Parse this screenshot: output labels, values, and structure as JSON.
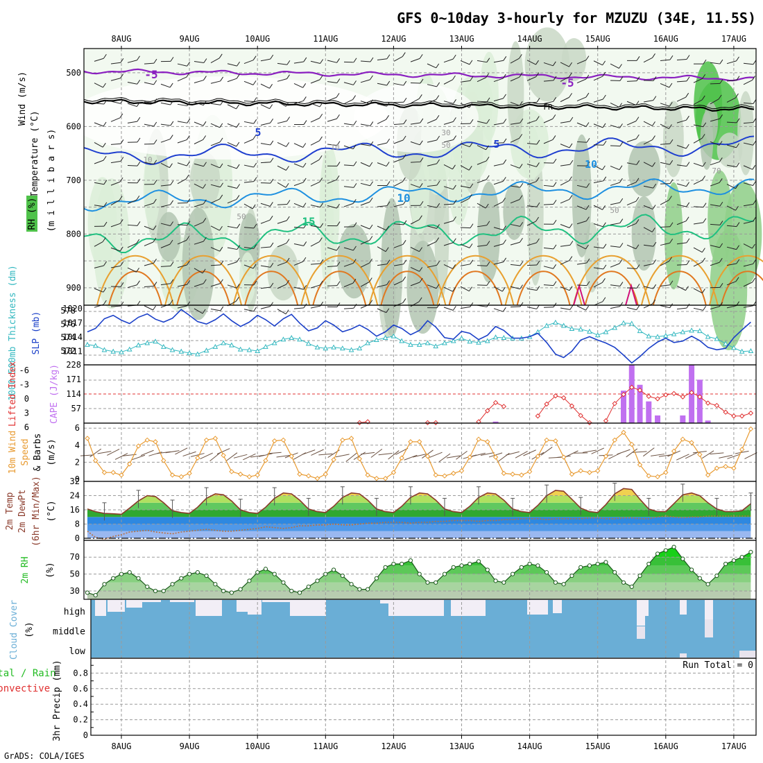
{
  "title": "GFS 0~10day 3-hourly for MZUZU (34E, 11.5S)",
  "footer": "GrADS: COLA/IGES",
  "dates": [
    "8AUG",
    "9AUG",
    "10AUG",
    "11AUG",
    "12AUG",
    "13AUG",
    "14AUG",
    "15AUG",
    "16AUG",
    "17AUG"
  ],
  "colors": {
    "slp": "#1a3fc8",
    "thickness": "#33b8c0",
    "lifted": "#e03030",
    "cape": "#c070f0",
    "wind10": "#e89a30",
    "temp2m": "#8a3a2a",
    "rh2m": "#22bb22",
    "cloud": "#6aaed6",
    "precip_total": "#22bb22",
    "precip_conv": "#e03030"
  },
  "panels": {
    "upper": {
      "label_wind": "Wind (m/s)",
      "label_temp": "Temperature (°C)",
      "label_rh": "RH (%)",
      "label_mb": "(m i l l i b a r s)",
      "yticks": [
        "500",
        "600",
        "700",
        "800",
        "900"
      ],
      "contour_labels": [
        "-5",
        "-5",
        "FR",
        "5",
        "5",
        "10",
        "10",
        "15",
        "30",
        "50",
        "50",
        "50",
        "10",
        "10",
        "70"
      ]
    },
    "slp": {
      "label_thick": "1000-500mb Thickness (dm)",
      "label_slp": "SLP (mb)",
      "yticks_thick": [
        "578",
        "576",
        "574",
        "572"
      ],
      "yticks_slp": [
        "1020",
        "1017",
        "1014",
        "1011"
      ]
    },
    "cape": {
      "label_li": "Lifted Index",
      "label_cape": "CAPE (J/kg)",
      "yticks_li": [
        "-6",
        "-3",
        "0",
        "3",
        "6"
      ],
      "yticks_cape": [
        "228",
        "171",
        "114",
        "57"
      ]
    },
    "wind10": {
      "label_1": "10m Wind",
      "label_2": "Speed",
      "label_3": "& Barbs",
      "label_unit": "(m/s)",
      "yticks": [
        "6",
        "4",
        "2",
        "0"
      ]
    },
    "temp2m": {
      "label_1": "2m Temp",
      "label_2": "2m DewPt",
      "label_3": "(6hr Min/Max)",
      "label_unit": "(°C)",
      "yticks": [
        "32",
        "24",
        "16",
        "8",
        "0"
      ]
    },
    "rh2m": {
      "label": "2m RH",
      "label_unit": "(%)",
      "yticks": [
        "70",
        "50",
        "30"
      ]
    },
    "cloud": {
      "label": "Cloud Cover",
      "label_unit": "(%)",
      "yticks": [
        "high",
        "middle",
        "low"
      ]
    },
    "precip": {
      "label_1": "Total / Rain",
      "label_2": "Convective",
      "label_unit": "3hr Precip (mm)",
      "run_total": "Run Total = 0",
      "yticks": [
        "0.8",
        "0.6",
        "0.4",
        "0.2",
        "0"
      ]
    }
  },
  "chart_data": [
    {
      "type": "line",
      "title": "1000-500mb Thickness / SLP",
      "x_days": [
        7.5,
        7.62,
        7.75,
        7.88,
        8,
        8.12,
        8.25,
        8.38,
        8.5,
        8.62,
        8.75,
        8.88,
        9,
        9.12,
        9.25,
        9.38,
        9.5,
        9.62,
        9.75,
        9.88,
        10,
        10.12,
        10.25,
        10.38,
        10.5,
        10.62,
        10.75,
        10.88,
        11,
        11.12,
        11.25,
        11.38,
        11.5,
        11.62,
        11.75,
        11.88,
        12,
        12.12,
        12.25,
        12.38,
        12.5,
        12.62,
        12.75,
        12.88,
        13,
        13.12,
        13.25,
        13.38,
        13.5,
        13.62,
        13.75,
        13.88,
        14,
        14.12,
        14.25,
        14.38,
        14.5,
        14.62,
        14.75,
        14.88,
        15,
        15.12,
        15.25,
        15.38,
        15.5,
        15.62,
        15.75,
        15.88,
        16,
        16.12,
        16.25,
        16.38,
        16.5,
        16.62,
        16.75,
        16.88,
        17,
        17.12,
        17.25
      ],
      "series": [
        {
          "name": "SLP (mb)",
          "values": [
            1015.8,
            1016.5,
            1018.5,
            1019.2,
            1018.2,
            1017.5,
            1018.8,
            1019.5,
            1018.4,
            1017.8,
            1018.6,
            1020.4,
            1019.2,
            1017.9,
            1017.4,
            1018.3,
            1019.5,
            1018.1,
            1016.9,
            1017.8,
            1019.2,
            1018.3,
            1017.0,
            1018.5,
            1019.4,
            1017.6,
            1016.0,
            1016.6,
            1018.1,
            1017.2,
            1015.8,
            1016.4,
            1017.2,
            1016.3,
            1014.9,
            1015.8,
            1017.2,
            1016.5,
            1015.2,
            1016.1,
            1018.1,
            1016.8,
            1014.6,
            1014.3,
            1015.9,
            1015.5,
            1014.2,
            1015.1,
            1016.9,
            1016.1,
            1014.5,
            1014.5,
            1014.8,
            1015.5,
            1013.6,
            1011.2,
            1010.5,
            1011.8,
            1014.1,
            1014.8,
            1014.1,
            1013.5,
            1012.6,
            1011.0,
            1009.4,
            1010.7,
            1012.4,
            1013.7,
            1014.5,
            1013.6,
            1013.9,
            1014.9,
            1014.0,
            1012.6,
            1012.1,
            1012.4,
            1014.6,
            1016.2,
            1017.8
          ]
        },
        {
          "name": "1000-500mb Thickness (dm)",
          "values": [
            573.6,
            573.4,
            572.6,
            572.3,
            572.2,
            572.7,
            573.5,
            573.9,
            574.2,
            573.2,
            572.6,
            572.3,
            572.0,
            571.8,
            572.5,
            573.2,
            573.9,
            573.5,
            572.7,
            572.6,
            572.4,
            573.2,
            573.9,
            574.6,
            574.9,
            574.6,
            573.8,
            573.1,
            572.9,
            573.1,
            572.9,
            572.6,
            572.9,
            573.9,
            574.5,
            574.9,
            575.2,
            574.3,
            573.6,
            573.6,
            573.9,
            573.3,
            573.9,
            574.3,
            574.8,
            574.2,
            574.0,
            574.3,
            575.0,
            574.9,
            574.8,
            574.8,
            575.1,
            576.0,
            577.2,
            577.8,
            577.2,
            576.6,
            576.5,
            576.1,
            575.4,
            576.0,
            576.8,
            577.7,
            577.6,
            576.2,
            575.2,
            575.1,
            575.3,
            575.6,
            576.0,
            576.3,
            576.2,
            575.1,
            574.7,
            573.8,
            573.0,
            572.3,
            572.4
          ]
        }
      ]
    },
    {
      "type": "bar",
      "title": "Lifted Index / CAPE",
      "cape_bars": [
        [
          15.38,
          127
        ],
        [
          15.5,
          228
        ],
        [
          15.62,
          150
        ],
        [
          15.75,
          85
        ],
        [
          15.88,
          30
        ],
        [
          16.25,
          30
        ],
        [
          16.38,
          228
        ],
        [
          16.5,
          170
        ],
        [
          16.62,
          10
        ],
        [
          13.5,
          6
        ]
      ],
      "lifted_index_x": [
        11.5,
        11.62,
        12.5,
        12.62,
        13.25,
        13.38,
        13.5,
        13.62,
        14.12,
        14.25,
        14.38,
        14.5,
        14.62,
        14.75,
        14.88,
        15.12,
        15.25,
        15.38,
        15.5,
        15.62,
        15.75,
        15.88,
        16,
        16.12,
        16.25,
        16.38,
        16.5,
        16.62,
        16.75,
        16.88,
        17,
        17.12,
        17.25
      ],
      "lifted_index": [
        6.0,
        5.8,
        6.0,
        6.0,
        5.8,
        3.5,
        1.8,
        2.6,
        4.6,
        2.1,
        0.4,
        0.8,
        2.5,
        4.5,
        6.0,
        5.6,
        2.0,
        0.1,
        -1.4,
        -0.8,
        0.5,
        1.0,
        0.2,
        -0.1,
        0.6,
        -0.3,
        0.6,
        1.9,
        2.4,
        3.8,
        4.6,
        4.6,
        4.0
      ],
      "ylim_cape": [
        0,
        228
      ],
      "ylim_li": [
        6,
        -6
      ]
    },
    {
      "type": "line",
      "title": "10m Wind Speed",
      "x_days": [
        7.5,
        7.62,
        7.75,
        7.88,
        8,
        8.12,
        8.25,
        8.38,
        8.5,
        8.62,
        8.75,
        8.88,
        9,
        9.12,
        9.25,
        9.38,
        9.5,
        9.62,
        9.75,
        9.88,
        10,
        10.12,
        10.25,
        10.38,
        10.5,
        10.62,
        10.75,
        10.88,
        11,
        11.12,
        11.25,
        11.38,
        11.5,
        11.62,
        11.75,
        11.88,
        12,
        12.12,
        12.25,
        12.38,
        12.5,
        12.62,
        12.75,
        12.88,
        13,
        13.12,
        13.25,
        13.38,
        13.5,
        13.62,
        13.75,
        13.88,
        14,
        14.12,
        14.25,
        14.38,
        14.5,
        14.62,
        14.75,
        14.88,
        15,
        15.12,
        15.25,
        15.38,
        15.5,
        15.62,
        15.75,
        15.88,
        16,
        16.12,
        16.25,
        16.38,
        16.5,
        16.62,
        16.75,
        16.88,
        17,
        17.12,
        17.25
      ],
      "series": [
        {
          "name": "10m Wind Speed",
          "values": [
            4.8,
            2.2,
            0.8,
            0.8,
            0.5,
            1.8,
            3.9,
            4.6,
            4.4,
            2.2,
            0.5,
            0.3,
            0.7,
            2.5,
            4.6,
            4.8,
            2.8,
            0.9,
            0.6,
            0.3,
            0.5,
            2.2,
            4.5,
            4.6,
            2.7,
            0.6,
            0.4,
            0.1,
            0.6,
            2.3,
            4.6,
            4.8,
            2.4,
            0.5,
            0.1,
            0.1,
            0.8,
            2.5,
            4.4,
            4.4,
            2.7,
            0.5,
            0.4,
            0.7,
            1.0,
            2.6,
            4.7,
            4.4,
            2.6,
            0.7,
            0.6,
            0.5,
            0.9,
            2.7,
            4.6,
            4.5,
            2.6,
            0.6,
            1.0,
            0.8,
            1.0,
            2.7,
            4.6,
            5.5,
            4.1,
            1.7,
            0.4,
            0.3,
            0.8,
            3.3,
            4.7,
            4.3,
            2.9,
            0.5,
            1.3,
            1.5,
            1.3,
            3.5,
            5.9
          ]
        }
      ],
      "ylim": [
        0,
        6
      ]
    },
    {
      "type": "area",
      "title": "2m Temp / 2m DewPt",
      "x_days": [
        7.5,
        7.62,
        7.75,
        7.88,
        8,
        8.12,
        8.25,
        8.38,
        8.5,
        8.62,
        8.75,
        8.88,
        9,
        9.12,
        9.25,
        9.38,
        9.5,
        9.62,
        9.75,
        9.88,
        10,
        10.12,
        10.25,
        10.38,
        10.5,
        10.62,
        10.75,
        10.88,
        11,
        11.12,
        11.25,
        11.38,
        11.5,
        11.62,
        11.75,
        11.88,
        12,
        12.12,
        12.25,
        12.38,
        12.5,
        12.62,
        12.75,
        12.88,
        13,
        13.12,
        13.25,
        13.38,
        13.5,
        13.62,
        13.75,
        13.88,
        14,
        14.12,
        14.25,
        14.38,
        14.5,
        14.62,
        14.75,
        14.88,
        15,
        15.12,
        15.25,
        15.38,
        15.5,
        15.62,
        15.75,
        15.88,
        16,
        16.12,
        16.25,
        16.38,
        16.5,
        16.62,
        16.75,
        16.88,
        17,
        17.12,
        17.25
      ],
      "series": [
        {
          "name": "2m Temp",
          "values": [
            16.5,
            15.0,
            14.0,
            13.8,
            13.5,
            17.0,
            21.0,
            24.0,
            23.5,
            20.0,
            15.5,
            14.5,
            14.0,
            17.5,
            22.5,
            25.0,
            24.5,
            21.0,
            16.0,
            14.5,
            14.0,
            17.5,
            22.5,
            25.5,
            25.0,
            21.5,
            16.5,
            15.0,
            14.5,
            18.0,
            23.0,
            25.5,
            25.0,
            21.5,
            16.5,
            15.0,
            14.5,
            18.0,
            23.0,
            25.5,
            25.0,
            21.5,
            16.5,
            15.0,
            14.5,
            18.0,
            23.0,
            25.5,
            25.0,
            21.5,
            16.5,
            15.0,
            14.5,
            18.5,
            24.0,
            27.0,
            26.5,
            22.0,
            17.0,
            15.0,
            14.5,
            19.0,
            25.0,
            28.0,
            27.5,
            22.0,
            16.5,
            15.0,
            15.0,
            19.5,
            24.5,
            25.5,
            24.0,
            20.0,
            16.5,
            15.0,
            15.0,
            15.5,
            19.5
          ]
        },
        {
          "name": "2m DewPt",
          "values": [
            4.0,
            0.5,
            -0.5,
            1.0,
            2.0,
            3.5,
            4.0,
            4.5,
            3.5,
            3.0,
            2.5,
            3.5,
            4.0,
            4.5,
            5.0,
            4.5,
            4.0,
            4.0,
            4.5,
            5.0,
            5.5,
            6.5,
            6.0,
            5.5,
            6.0,
            7.0,
            7.0,
            7.5,
            7.5,
            8.0,
            7.5,
            7.5,
            8.0,
            8.5,
            8.5,
            9.0,
            9.0,
            9.0,
            8.5,
            9.0,
            9.0,
            9.5,
            9.5,
            10.0,
            10.0,
            10.0,
            9.5,
            10.0,
            10.0,
            10.5,
            10.5,
            11.0,
            11.0,
            11.0,
            10.5,
            11.0,
            11.0,
            11.0,
            11.0,
            11.5,
            11.5,
            11.0,
            11.0,
            11.5,
            11.5,
            11.0,
            11.0,
            12.0,
            12.5,
            12.0,
            11.5,
            12.0,
            12.0,
            12.5,
            12.5,
            12.5,
            12.5,
            12.5,
            12.5
          ]
        }
      ],
      "ylim": [
        0,
        32
      ]
    },
    {
      "type": "area",
      "title": "2m RH",
      "x_days": [
        7.5,
        7.62,
        7.75,
        7.88,
        8,
        8.12,
        8.25,
        8.38,
        8.5,
        8.62,
        8.75,
        8.88,
        9,
        9.12,
        9.25,
        9.38,
        9.5,
        9.62,
        9.75,
        9.88,
        10,
        10.12,
        10.25,
        10.38,
        10.5,
        10.62,
        10.75,
        10.88,
        11,
        11.12,
        11.25,
        11.38,
        11.5,
        11.62,
        11.75,
        11.88,
        12,
        12.12,
        12.25,
        12.38,
        12.5,
        12.62,
        12.75,
        12.88,
        13,
        13.12,
        13.25,
        13.38,
        13.5,
        13.62,
        13.75,
        13.88,
        14,
        14.12,
        14.25,
        14.38,
        14.5,
        14.62,
        14.75,
        14.88,
        15,
        15.12,
        15.25,
        15.38,
        15.5,
        15.62,
        15.75,
        15.88,
        16,
        16.12,
        16.25,
        16.38,
        16.5,
        16.62,
        16.75,
        16.88,
        17,
        17.12,
        17.25
      ],
      "series": [
        {
          "name": "2m RH",
          "values": [
            28,
            25,
            38,
            45,
            50,
            52,
            45,
            35,
            30,
            30,
            38,
            45,
            50,
            52,
            48,
            38,
            30,
            28,
            32,
            42,
            52,
            56,
            50,
            40,
            30,
            28,
            35,
            42,
            50,
            55,
            48,
            38,
            32,
            32,
            45,
            58,
            62,
            62,
            66,
            50,
            40,
            40,
            50,
            58,
            60,
            62,
            65,
            55,
            42,
            40,
            50,
            58,
            62,
            60,
            52,
            40,
            38,
            48,
            58,
            60,
            62,
            64,
            52,
            40,
            35,
            48,
            62,
            74,
            78,
            82,
            68,
            55,
            45,
            38,
            48,
            62,
            66,
            70,
            76
          ]
        }
      ],
      "ylim": [
        20,
        90
      ]
    },
    {
      "type": "bar",
      "title": "3hr Precip (mm)",
      "values": [
        0
      ],
      "ylim": [
        0,
        1
      ]
    }
  ]
}
